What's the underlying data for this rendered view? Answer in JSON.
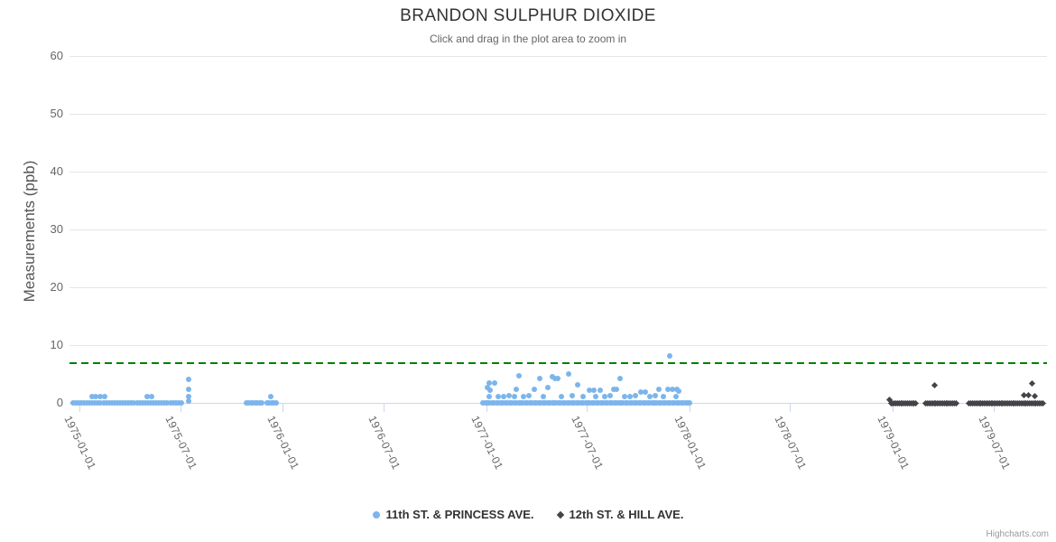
{
  "title": "BRANDON SULPHUR DIOXIDE",
  "subtitle": "Click and drag in the plot area to zoom in",
  "credits": "Highcharts.com",
  "colors": {
    "grid": "#e6e6e6",
    "axis_line": "#ccd6eb",
    "title": "#333333",
    "subtitle": "#666666",
    "axis_labels": "#666666",
    "legend_text": "#333333",
    "credits": "#999999",
    "plot_line": "#008000",
    "series_blue": "#7cb5ec",
    "series_dark": "#434348"
  },
  "chart_data": {
    "type": "scatter",
    "title": "BRANDON SULPHUR DIOXIDE",
    "subtitle": "Click and drag in the plot area to zoom in",
    "xlabel": "",
    "ylabel": "Measurements (ppb)",
    "ylim": [
      0,
      60
    ],
    "y_ticks": [
      0,
      10,
      20,
      30,
      40,
      50,
      60
    ],
    "x_ticks": [
      "1975-01-01",
      "1975-07-01",
      "1976-01-01",
      "1976-07-01",
      "1977-01-01",
      "1977-07-01",
      "1978-01-01",
      "1978-07-01",
      "1979-01-01",
      "1979-07-01"
    ],
    "x_range": [
      "1975-01-01",
      "1979-07-01"
    ],
    "grid": true,
    "legend_position": "bottom-center",
    "plot_line": {
      "y": 7,
      "color": "#008000",
      "style": "dashed"
    },
    "series": [
      {
        "name": "11th ST. & PRINCESS AVE.",
        "color": "#7cb5ec",
        "marker": "circle",
        "zero_runs": [
          {
            "start": "1974-12-20",
            "end": "1975-07-05",
            "step_days": 5,
            "value": 0
          },
          {
            "start": "1975-10-28",
            "end": "1975-11-28",
            "step_days": 4,
            "value": 0
          },
          {
            "start": "1975-12-04",
            "end": "1975-12-20",
            "step_days": 4,
            "value": 0
          },
          {
            "start": "1976-12-26",
            "end": "1978-01-02",
            "step_days": 4,
            "value": 0
          }
        ],
        "points": [
          [
            "1975-01-23",
            1.1
          ],
          [
            "1975-01-31",
            1.1
          ],
          [
            "1975-02-08",
            1.1
          ],
          [
            "1975-02-16",
            1.1
          ],
          [
            "1975-05-03",
            1.1
          ],
          [
            "1975-05-11",
            1.1
          ],
          [
            "1975-07-16",
            4.0
          ],
          [
            "1975-07-17",
            2.3
          ],
          [
            "1975-07-17",
            1.1
          ],
          [
            "1975-07-16",
            0.3
          ],
          [
            "1975-12-11",
            1.1
          ],
          [
            "1977-01-03",
            2.7
          ],
          [
            "1977-01-06",
            3.4
          ],
          [
            "1977-01-06",
            1.1
          ],
          [
            "1977-01-08",
            2.2
          ],
          [
            "1977-01-16",
            3.4
          ],
          [
            "1977-01-22",
            1.1
          ],
          [
            "1977-02-01",
            1.1
          ],
          [
            "1977-02-11",
            1.2
          ],
          [
            "1977-02-20",
            1.1
          ],
          [
            "1977-02-24",
            2.4
          ],
          [
            "1977-03-01",
            4.7
          ],
          [
            "1977-03-09",
            1.1
          ],
          [
            "1977-03-19",
            1.2
          ],
          [
            "1977-03-28",
            2.4
          ],
          [
            "1977-04-07",
            4.2
          ],
          [
            "1977-04-14",
            1.1
          ],
          [
            "1977-04-22",
            2.7
          ],
          [
            "1977-04-30",
            4.5
          ],
          [
            "1977-05-05",
            4.2
          ],
          [
            "1977-05-10",
            4.2
          ],
          [
            "1977-05-16",
            1.1
          ],
          [
            "1977-05-29",
            5.0
          ],
          [
            "1977-06-04",
            1.2
          ],
          [
            "1977-06-14",
            3.1
          ],
          [
            "1977-06-24",
            1.1
          ],
          [
            "1977-07-05",
            2.2
          ],
          [
            "1977-07-13",
            2.2
          ],
          [
            "1977-07-17",
            1.1
          ],
          [
            "1977-07-25",
            2.2
          ],
          [
            "1977-08-02",
            1.1
          ],
          [
            "1977-08-11",
            1.2
          ],
          [
            "1977-08-18",
            2.3
          ],
          [
            "1977-08-23",
            2.3
          ],
          [
            "1977-08-29",
            4.2
          ],
          [
            "1977-09-07",
            1.1
          ],
          [
            "1977-09-16",
            1.1
          ],
          [
            "1977-09-26",
            1.2
          ],
          [
            "1977-10-06",
            1.9
          ],
          [
            "1977-10-14",
            1.9
          ],
          [
            "1977-10-22",
            1.1
          ],
          [
            "1977-11-01",
            1.2
          ],
          [
            "1977-11-07",
            2.3
          ],
          [
            "1977-11-15",
            1.1
          ],
          [
            "1977-11-23",
            2.4
          ],
          [
            "1977-11-27",
            8.1
          ],
          [
            "1977-12-02",
            2.4
          ],
          [
            "1977-12-08",
            1.1
          ],
          [
            "1977-12-10",
            2.3
          ],
          [
            "1977-12-13",
            2.0
          ]
        ]
      },
      {
        "name": "12th ST. & HILL AVE.",
        "color": "#434348",
        "marker": "diamond",
        "zero_runs": [
          {
            "start": "1978-12-29",
            "end": "1979-02-14",
            "step_days": 3,
            "value": 0
          },
          {
            "start": "1979-03-02",
            "end": "1979-04-26",
            "step_days": 3,
            "value": 0
          },
          {
            "start": "1979-05-19",
            "end": "1979-09-28",
            "step_days": 3,
            "value": 0
          }
        ],
        "points": [
          [
            "1978-12-26",
            0.5
          ],
          [
            "1979-03-17",
            3.1
          ],
          [
            "1979-08-25",
            1.4
          ],
          [
            "1979-09-02",
            1.4
          ],
          [
            "1979-09-08",
            3.3
          ],
          [
            "1979-09-13",
            1.1
          ]
        ]
      }
    ]
  }
}
